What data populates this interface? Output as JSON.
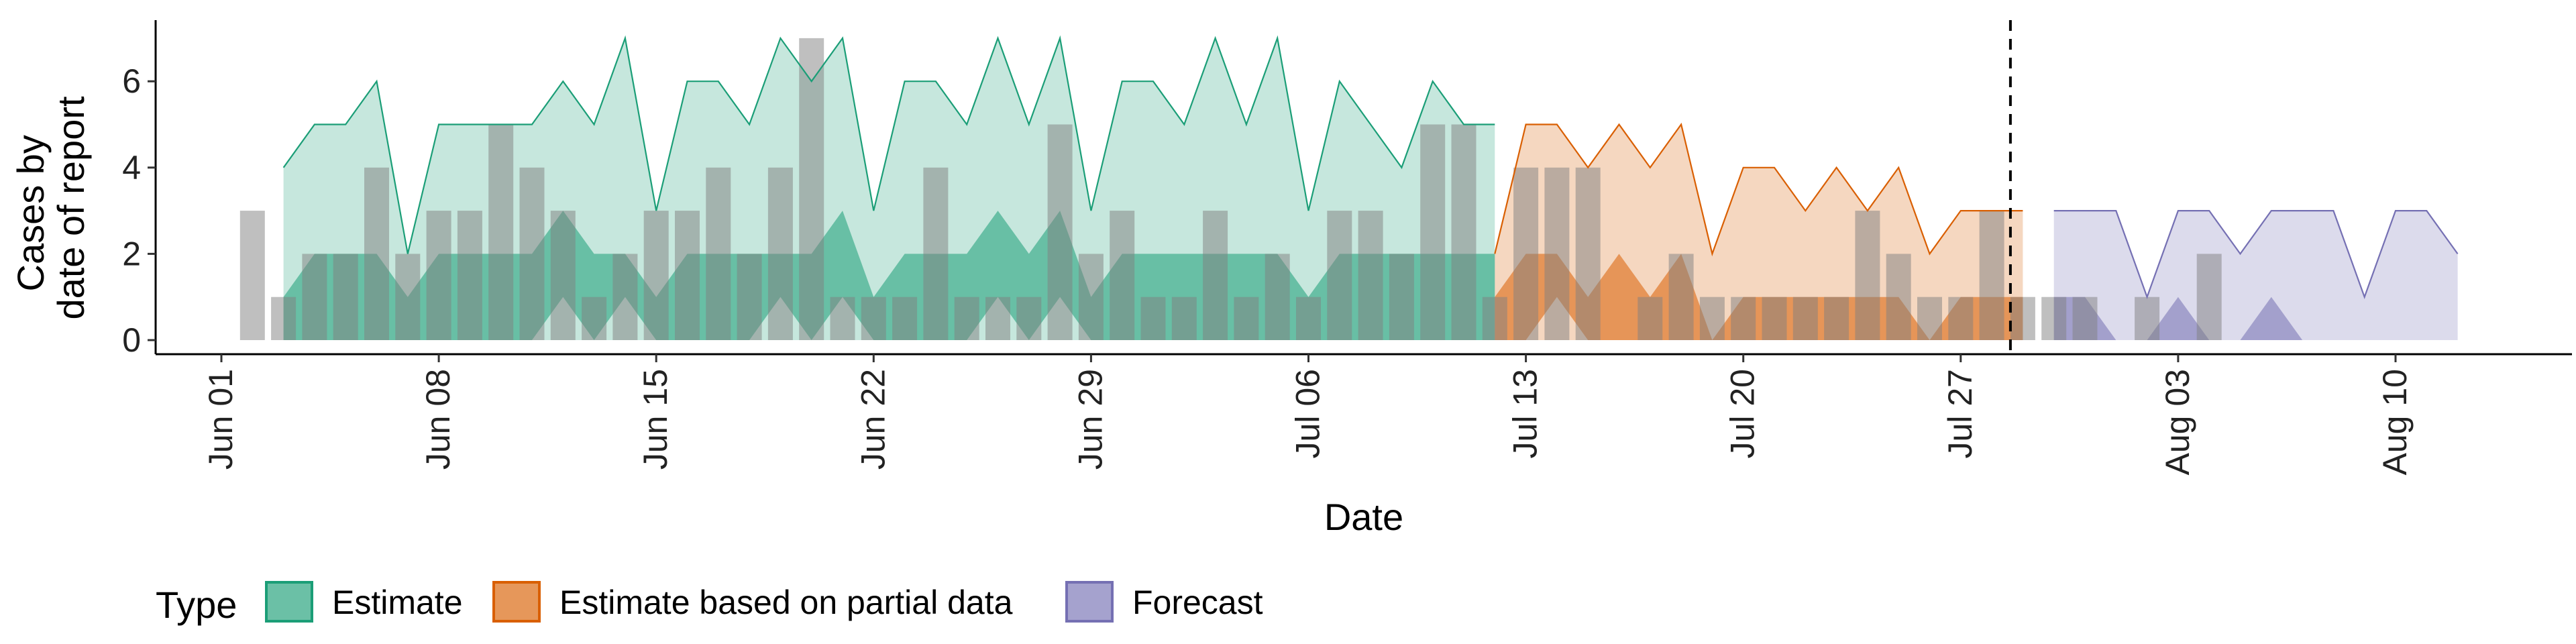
{
  "chart_data": {
    "type": "area",
    "xlabel": "Date",
    "ylabel_lines": [
      "Cases by",
      "date of report"
    ],
    "ylim": [
      0,
      7
    ],
    "y_ticks": [
      0,
      2,
      4,
      6
    ],
    "x_start": "2020-06-01",
    "x_end": "2020-08-15",
    "x_ticks": [
      {
        "date": "2020-06-01",
        "label": "Jun 01"
      },
      {
        "date": "2020-06-08",
        "label": "Jun 08"
      },
      {
        "date": "2020-06-15",
        "label": "Jun 15"
      },
      {
        "date": "2020-06-22",
        "label": "Jun 22"
      },
      {
        "date": "2020-06-29",
        "label": "Jun 29"
      },
      {
        "date": "2020-07-06",
        "label": "Jul 06"
      },
      {
        "date": "2020-07-13",
        "label": "Jul 13"
      },
      {
        "date": "2020-07-20",
        "label": "Jul 20"
      },
      {
        "date": "2020-07-27",
        "label": "Jul 27"
      },
      {
        "date": "2020-08-03",
        "label": "Aug 03"
      },
      {
        "date": "2020-08-10",
        "label": "Aug 10"
      }
    ],
    "forecast_start_line": "2020-07-29",
    "observed_cases": {
      "start_date": "2020-06-02",
      "values": [
        3,
        1,
        2,
        2,
        4,
        2,
        3,
        3,
        5,
        4,
        3,
        1,
        2,
        3,
        3,
        4,
        2,
        4,
        7,
        1,
        1,
        1,
        4,
        1,
        1,
        1,
        5,
        2,
        3,
        1,
        1,
        3,
        1,
        2,
        1,
        3,
        3,
        2,
        5,
        5,
        1,
        4,
        4,
        4,
        0,
        1,
        2,
        1,
        1,
        1,
        1,
        1,
        3,
        2,
        1,
        1,
        3,
        1,
        1,
        1,
        0,
        1,
        0,
        2
      ]
    },
    "series": [
      {
        "name": "Estimate",
        "color": "#1B9E77",
        "start_date": "2020-06-03",
        "outer_upper": [
          4,
          5,
          5,
          6,
          2,
          5,
          5,
          5,
          5,
          6,
          5,
          7,
          3,
          6,
          6,
          5,
          7,
          6,
          7,
          3,
          6,
          6,
          5,
          7,
          5,
          7,
          3,
          6,
          6,
          5,
          7,
          5,
          7,
          3,
          6,
          5,
          4,
          6,
          5,
          5
        ],
        "inner_upper": [
          1,
          2,
          2,
          2,
          1,
          2,
          2,
          2,
          2,
          3,
          2,
          2,
          1,
          2,
          2,
          2,
          2,
          2,
          3,
          1,
          2,
          2,
          2,
          3,
          2,
          3,
          1,
          2,
          2,
          2,
          2,
          2,
          2,
          1,
          2,
          2,
          2,
          2,
          2,
          2
        ],
        "inner_lower": [
          0,
          0,
          0,
          0,
          0,
          0,
          0,
          0,
          0,
          1,
          0,
          1,
          0,
          0,
          0,
          0,
          1,
          0,
          1,
          0,
          0,
          0,
          0,
          1,
          0,
          1,
          0,
          0,
          0,
          0,
          0,
          0,
          0,
          0,
          0,
          0,
          0,
          0,
          0,
          0
        ]
      },
      {
        "name": "Estimate based on partial data",
        "color": "#D95F02",
        "start_date": "2020-07-12",
        "outer_upper": [
          2,
          5,
          5,
          4,
          5,
          4,
          5,
          2,
          4,
          4,
          3,
          4,
          3,
          4,
          2,
          3,
          3,
          3
        ],
        "inner_upper": [
          1,
          2,
          2,
          1,
          2,
          1,
          2,
          0,
          1,
          1,
          1,
          1,
          1,
          1,
          0,
          1,
          1,
          1
        ],
        "inner_lower": [
          0,
          0,
          1,
          0,
          0,
          0,
          0,
          0,
          0,
          0,
          0,
          0,
          0,
          0,
          0,
          0,
          0,
          0
        ]
      },
      {
        "name": "Forecast",
        "color": "#7570B3",
        "start_date": "2020-07-30",
        "outer_upper": [
          3,
          3,
          3,
          1,
          3,
          3,
          2,
          3,
          3,
          3,
          1,
          3,
          3,
          2
        ],
        "inner_upper": [
          1,
          1,
          0,
          0,
          1,
          0,
          0,
          1,
          0,
          0,
          0,
          0,
          0,
          0
        ],
        "inner_lower": [
          0,
          0,
          0,
          0,
          0,
          0,
          0,
          0,
          0,
          0,
          0,
          0,
          0,
          0
        ]
      }
    ],
    "legend": {
      "title": "Type",
      "position": "bottom",
      "items": [
        "Estimate",
        "Estimate based on partial data",
        "Forecast"
      ]
    },
    "grid": false
  }
}
